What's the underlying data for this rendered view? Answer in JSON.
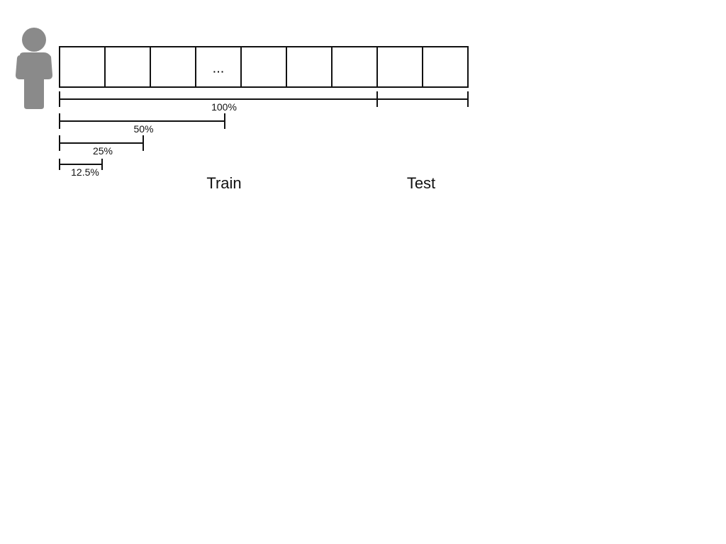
{
  "icons": {
    "user": "user-icon",
    "color": "#8a8a8a"
  },
  "sequence": {
    "cell_count": 9,
    "ellipsis_label": "...",
    "ellipsis_position": 4,
    "test_start_cell": 8
  },
  "brackets": [
    {
      "label": "100%",
      "fraction": 1.0
    },
    {
      "label": "50%",
      "fraction": 0.5
    },
    {
      "label": "25%",
      "fraction": 0.25
    },
    {
      "label": "12.5%",
      "fraction": 0.125
    }
  ],
  "labels": {
    "train": "Train",
    "test": "Test"
  }
}
